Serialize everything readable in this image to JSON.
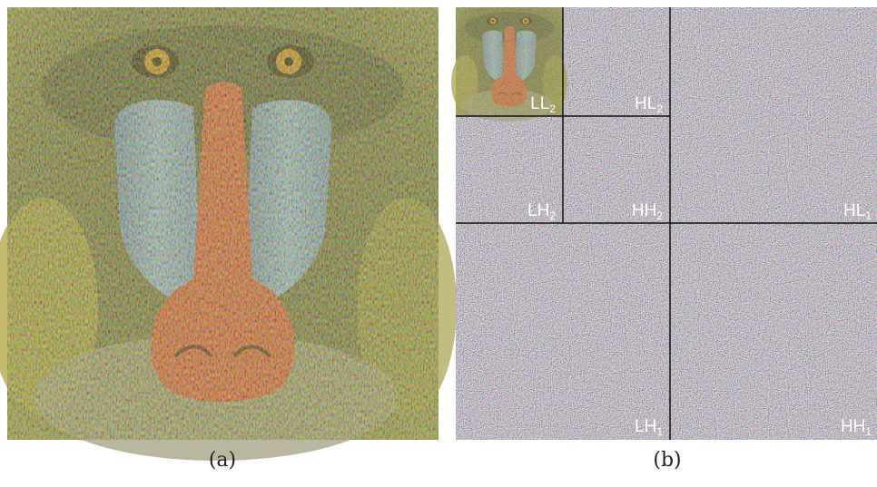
{
  "figure": {
    "captions": [
      "(a)",
      "(b)"
    ],
    "subbands": [
      {
        "name": "LL",
        "index": "2"
      },
      {
        "name": "HL",
        "index": "2"
      },
      {
        "name": "LH",
        "index": "2"
      },
      {
        "name": "HH",
        "index": "2"
      },
      {
        "name": "HL",
        "index": "1"
      },
      {
        "name": "LH",
        "index": "1"
      },
      {
        "name": "HH",
        "index": "1"
      }
    ]
  }
}
